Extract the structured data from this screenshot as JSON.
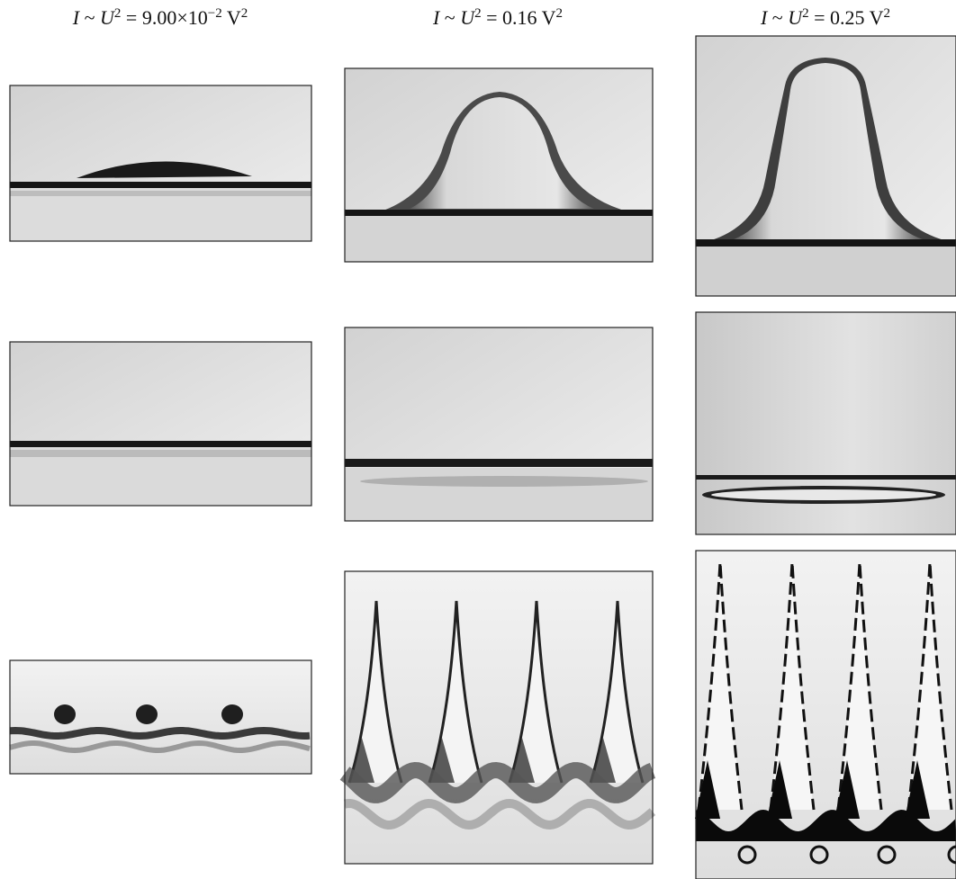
{
  "figure": {
    "columns": [
      {
        "header": {
          "current": "I",
          "relation": " ~ ",
          "voltage": "U",
          "voltage_exponent": "2",
          "equals": " = ",
          "value": "9.00×10",
          "value_exponent": "−2",
          "unit": " V",
          "unit_exponent": "2"
        }
      },
      {
        "header": {
          "current": "I",
          "relation": " ~ ",
          "voltage": "U",
          "voltage_exponent": "2",
          "equals": " = ",
          "value": "0.16",
          "unit": " V",
          "unit_exponent": "2"
        }
      },
      {
        "header": {
          "current": "I",
          "relation": " ~ ",
          "voltage": "U",
          "voltage_exponent": "2",
          "equals": " = ",
          "value": "0.25",
          "unit": " V",
          "unit_exponent": "2"
        }
      }
    ]
  }
}
